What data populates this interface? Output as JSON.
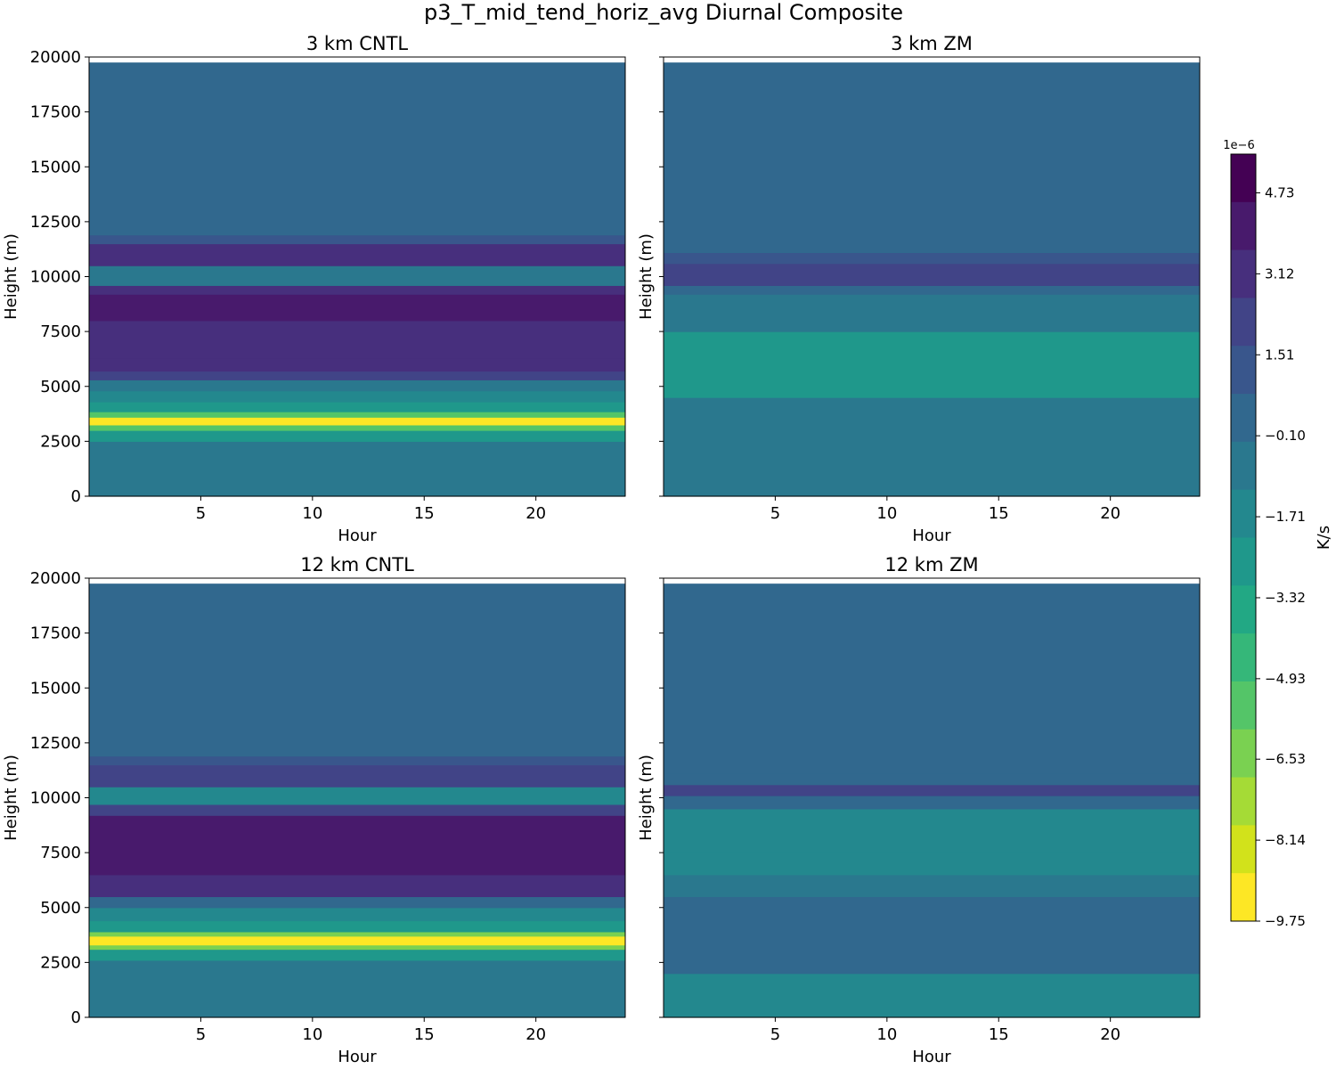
{
  "figure": {
    "suptitle": "p3_T_mid_tend_horiz_avg Diurnal Composite"
  },
  "palette": [
    "#440154",
    "#481a6c",
    "#472f7d",
    "#414487",
    "#39568c",
    "#31688e",
    "#2a788e",
    "#23888e",
    "#1f988b",
    "#22a884",
    "#35b779",
    "#54c568",
    "#7ad151",
    "#a5db36",
    "#d2e21b",
    "#fde725"
  ],
  "chart_data": [
    {
      "type": "heatmap",
      "title": "3 km CNTL",
      "xlabel": "Hour",
      "ylabel": "Height (m)",
      "xlim": [
        0,
        24
      ],
      "ylim": [
        0,
        20000
      ],
      "xticks": [
        5,
        10,
        15,
        20
      ],
      "yticks": [
        0,
        2500,
        5000,
        7500,
        10000,
        12500,
        15000,
        17500,
        20000
      ],
      "data_top": 19750,
      "layers": [
        {
          "from": 0,
          "to": 1000,
          "level": -0.9
        },
        {
          "from": 1000,
          "to": 2500,
          "level": -0.95
        },
        {
          "from": 2500,
          "to": 3000,
          "level": -2.5
        },
        {
          "from": 3000,
          "to": 3250,
          "level": -5.2
        },
        {
          "from": 3250,
          "to": 3600,
          "level": -8.9
        },
        {
          "from": 3600,
          "to": 3850,
          "level": -5.2
        },
        {
          "from": 3850,
          "to": 4300,
          "level": -2.8
        },
        {
          "from": 4300,
          "to": 4800,
          "level": -1.6
        },
        {
          "from": 4800,
          "to": 5300,
          "level": -0.3
        },
        {
          "from": 5300,
          "to": 5700,
          "level": 1.8
        },
        {
          "from": 5700,
          "to": 6300,
          "level": 2.9
        },
        {
          "from": 6300,
          "to": 8000,
          "level": 3.4
        },
        {
          "from": 8000,
          "to": 9200,
          "level": 4.5
        },
        {
          "from": 9200,
          "to": 9600,
          "level": 2.8
        },
        {
          "from": 9600,
          "to": 10500,
          "level": -1.0
        },
        {
          "from": 10500,
          "to": 11500,
          "level": 3.0
        },
        {
          "from": 11500,
          "to": 11900,
          "level": 0.9
        },
        {
          "from": 11900,
          "to": 19750,
          "level": -0.05
        }
      ]
    },
    {
      "type": "heatmap",
      "title": "3 km ZM",
      "xlabel": "Hour",
      "ylabel": "Height (m)",
      "xlim": [
        0,
        24
      ],
      "ylim": [
        0,
        20000
      ],
      "xticks": [
        5,
        10,
        15,
        20
      ],
      "yticks": [
        0,
        2500,
        5000,
        7500,
        10000,
        12500,
        15000,
        17500,
        20000
      ],
      "data_top": 19750,
      "layers": [
        {
          "from": 0,
          "to": 2800,
          "level": -0.9
        },
        {
          "from": 2800,
          "to": 3400,
          "level": -0.4
        },
        {
          "from": 3400,
          "to": 4500,
          "level": -1.0
        },
        {
          "from": 4500,
          "to": 7500,
          "level": -2.2
        },
        {
          "from": 7500,
          "to": 9200,
          "level": -1.0
        },
        {
          "from": 9200,
          "to": 9600,
          "level": 0.0
        },
        {
          "from": 9600,
          "to": 10600,
          "level": 1.9
        },
        {
          "from": 10600,
          "to": 11100,
          "level": 0.8
        },
        {
          "from": 11100,
          "to": 19750,
          "level": -0.05
        }
      ]
    },
    {
      "type": "heatmap",
      "title": "12 km CNTL",
      "xlabel": "Hour",
      "ylabel": "Height (m)",
      "xlim": [
        0,
        24
      ],
      "ylim": [
        0,
        20000
      ],
      "xticks": [
        5,
        10,
        15,
        20
      ],
      "yticks": [
        0,
        2500,
        5000,
        7500,
        10000,
        12500,
        15000,
        17500,
        20000
      ],
      "data_top": 19750,
      "layers": [
        {
          "from": 0,
          "to": 1400,
          "level": -1.0
        },
        {
          "from": 1400,
          "to": 2000,
          "level": -0.4
        },
        {
          "from": 2000,
          "to": 2600,
          "level": -1.0
        },
        {
          "from": 2600,
          "to": 3100,
          "level": -3.0
        },
        {
          "from": 3100,
          "to": 3300,
          "level": -6.0
        },
        {
          "from": 3300,
          "to": 3700,
          "level": -8.9
        },
        {
          "from": 3700,
          "to": 3900,
          "level": -6.0
        },
        {
          "from": 3900,
          "to": 4400,
          "level": -3.0
        },
        {
          "from": 4400,
          "to": 5000,
          "level": -1.6
        },
        {
          "from": 5000,
          "to": 5500,
          "level": 0.5
        },
        {
          "from": 5500,
          "to": 6500,
          "level": 2.8
        },
        {
          "from": 6500,
          "to": 9200,
          "level": 3.6
        },
        {
          "from": 9200,
          "to": 9700,
          "level": 1.8
        },
        {
          "from": 9700,
          "to": 10500,
          "level": -1.2
        },
        {
          "from": 10500,
          "to": 11500,
          "level": 2.4
        },
        {
          "from": 11500,
          "to": 11900,
          "level": 0.9
        },
        {
          "from": 11900,
          "to": 19750,
          "level": -0.05
        }
      ]
    },
    {
      "type": "heatmap",
      "title": "12 km ZM",
      "xlabel": "Hour",
      "ylabel": "Height (m)",
      "xlim": [
        0,
        24
      ],
      "ylim": [
        0,
        20000
      ],
      "xticks": [
        5,
        10,
        15,
        20
      ],
      "yticks": [
        0,
        2500,
        5000,
        7500,
        10000,
        12500,
        15000,
        17500,
        20000
      ],
      "data_top": 19750,
      "layers": [
        {
          "from": 0,
          "to": 2000,
          "level": -1.2
        },
        {
          "from": 2000,
          "to": 5500,
          "level": -0.2
        },
        {
          "from": 5500,
          "to": 6500,
          "level": -1.1
        },
        {
          "from": 6500,
          "to": 7500,
          "level": -2.0
        },
        {
          "from": 7500,
          "to": 9500,
          "level": -1.2
        },
        {
          "from": 9500,
          "to": 10100,
          "level": 0.2
        },
        {
          "from": 10100,
          "to": 10600,
          "level": 1.9
        },
        {
          "from": 10600,
          "to": 11100,
          "level": 0.5
        },
        {
          "from": 11100,
          "to": 19750,
          "level": -0.05
        }
      ]
    }
  ],
  "colorbar": {
    "label": "K/s",
    "offset_label": "1e−6",
    "range": [
      -9.75,
      5.5
    ],
    "ticks": [
      {
        "value": 4.73,
        "label": "4.73"
      },
      {
        "value": 3.12,
        "label": "3.12"
      },
      {
        "value": 1.51,
        "label": "1.51"
      },
      {
        "value": -0.1,
        "label": "−0.10"
      },
      {
        "value": -1.71,
        "label": "−1.71"
      },
      {
        "value": -3.32,
        "label": "−3.32"
      },
      {
        "value": -4.93,
        "label": "−4.93"
      },
      {
        "value": -6.53,
        "label": "−6.53"
      },
      {
        "value": -8.14,
        "label": "−8.14"
      },
      {
        "value": -9.75,
        "label": "−9.75"
      }
    ]
  }
}
